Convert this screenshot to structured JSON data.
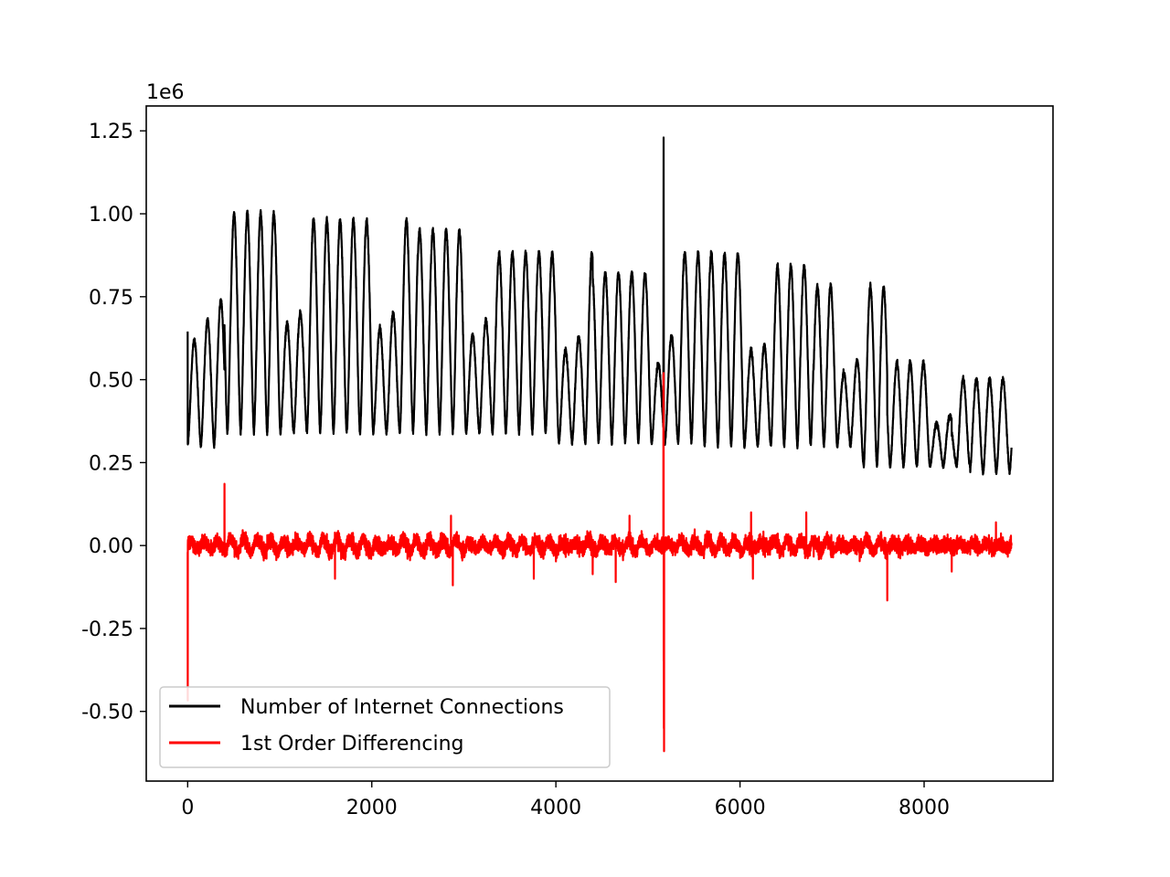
{
  "chart_data": {
    "type": "line",
    "title": "",
    "xlabel": "",
    "ylabel": "",
    "offset_text": "1e6",
    "xlim": [
      -450,
      9400
    ],
    "ylim": [
      -0.71,
      1.325
    ],
    "x_ticks": [
      0,
      2000,
      4000,
      6000,
      8000
    ],
    "x_tick_labels": [
      "0",
      "2000",
      "4000",
      "6000",
      "8000"
    ],
    "y_ticks": [
      1.25,
      1.0,
      0.75,
      0.5,
      0.25,
      0.0,
      -0.25,
      -0.5
    ],
    "y_tick_labels": [
      "1.25",
      "1.00",
      "0.75",
      "0.50",
      "0.25",
      "0.00",
      "-0.25",
      "-0.50"
    ],
    "grid": false,
    "legend_position": "lower-left",
    "x_count": 8950,
    "series": [
      {
        "name": "Number of Internet Connections",
        "color": "#000000",
        "cycle_period": 144,
        "daily_peaks_weekly_pattern": [
          0.7,
          0.75,
          1.05,
          1.05,
          1.05,
          1.05,
          1.05
        ],
        "daily_troughs": 0.34,
        "spike": {
          "x": 5170,
          "y": 1.23
        }
      },
      {
        "name": "1st Order Differencing",
        "color": "#ff0000",
        "typical_range": [
          -0.04,
          0.05
        ],
        "spikes": [
          {
            "x": 5170,
            "y": 0.52
          },
          {
            "x": 5175,
            "y": -0.62
          },
          {
            "x": 1600,
            "y": 0.1
          },
          {
            "x": 1600,
            "y": -0.1
          },
          {
            "x": 2880,
            "y": -0.12
          },
          {
            "x": 2860,
            "y": 0.09
          },
          {
            "x": 3760,
            "y": -0.1
          },
          {
            "x": 4650,
            "y": -0.11
          },
          {
            "x": 4800,
            "y": 0.09
          },
          {
            "x": 6140,
            "y": -0.1
          },
          {
            "x": 6120,
            "y": 0.1
          },
          {
            "x": 6720,
            "y": 0.1
          },
          {
            "x": 8780,
            "y": 0.07
          }
        ]
      }
    ]
  }
}
